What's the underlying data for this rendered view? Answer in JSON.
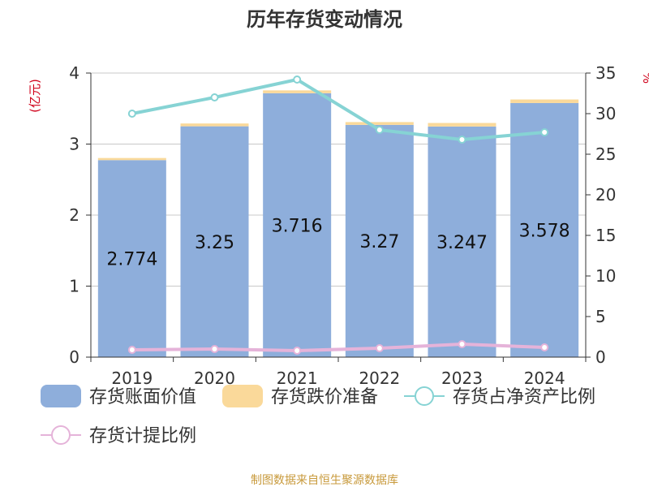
{
  "chart_data": {
    "type": "bar",
    "title": "历年存货变动情况",
    "left_axis_unit": "(亿元)",
    "right_axis_unit": "%",
    "categories": [
      "2019",
      "2020",
      "2021",
      "2022",
      "2023",
      "2024"
    ],
    "left_ylim": [
      0,
      4
    ],
    "left_ticks": [
      0,
      1,
      2,
      3,
      4
    ],
    "right_ylim": [
      0,
      35
    ],
    "right_ticks": [
      0,
      5,
      10,
      15,
      20,
      25,
      30,
      35
    ],
    "grid": true,
    "legend_position": "bottom",
    "series": [
      {
        "name": "存货账面价值",
        "kind": "bar",
        "axis": "left",
        "color": "#8eaedb",
        "values": [
          2.774,
          3.25,
          3.716,
          3.27,
          3.247,
          3.578
        ],
        "labels": [
          "2.774",
          "3.25",
          "3.716",
          "3.27",
          "3.247",
          "3.578"
        ]
      },
      {
        "name": "存货跌价准备",
        "kind": "bar-stacked",
        "axis": "left",
        "color": "#fad99a",
        "values": [
          0.03,
          0.04,
          0.04,
          0.04,
          0.05,
          0.05
        ]
      },
      {
        "name": "存货占净资产比例",
        "kind": "line",
        "axis": "right",
        "color": "#86d3d4",
        "values": [
          30.0,
          32.0,
          34.2,
          28.0,
          26.8,
          27.7
        ]
      },
      {
        "name": "存货计提比例",
        "kind": "line",
        "axis": "right",
        "color": "#e5b3d9",
        "values": [
          0.9,
          1.0,
          0.8,
          1.1,
          1.6,
          1.2
        ]
      }
    ]
  },
  "footer": {
    "source": "制图数据来自恒生聚源数据库"
  }
}
